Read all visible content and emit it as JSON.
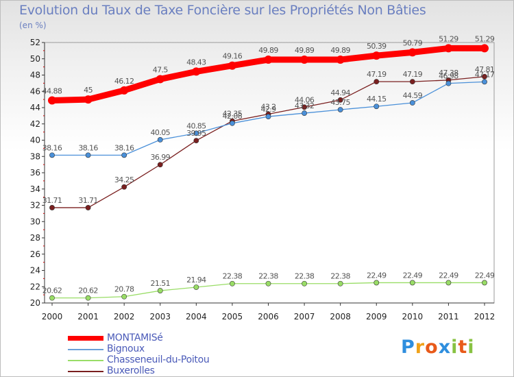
{
  "chart_data": {
    "type": "line",
    "title": "Evolution du Taux de Taxe Foncière sur les Propriétés Non Bâties",
    "unit_label": "(en %)",
    "x": [
      "2000",
      "2001",
      "2002",
      "2003",
      "2004",
      "2005",
      "2006",
      "2007",
      "2008",
      "2009",
      "2010",
      "2011",
      "2012"
    ],
    "ylim": [
      20,
      52
    ],
    "y_ticks": [
      20,
      22,
      24,
      26,
      28,
      30,
      32,
      34,
      36,
      38,
      40,
      42,
      44,
      46,
      48,
      50,
      52
    ],
    "grid": false,
    "legend_position": "bottom-left",
    "series": [
      {
        "name": "MONTAMISé",
        "color": "#ff0000",
        "values": [
          44.88,
          45,
          46.12,
          47.5,
          48.43,
          49.16,
          49.89,
          49.89,
          49.89,
          50.39,
          50.79,
          51.29,
          51.29
        ],
        "labels": [
          "44.88",
          "45",
          "46.12",
          "47.5",
          "48.43",
          "49.16",
          "49.89",
          "49.89",
          "49.89",
          "50.39",
          "50.79",
          "51.29",
          "51.29"
        ]
      },
      {
        "name": "Bignoux",
        "color": "#4a90d9",
        "values": [
          38.16,
          38.16,
          38.16,
          40.05,
          40.85,
          42.08,
          42.9,
          43.32,
          43.75,
          44.15,
          44.59,
          46.98,
          47.17
        ],
        "labels": [
          "38.16",
          "38.16",
          "38.16",
          "40.05",
          "40.85",
          "42.08",
          "42.9",
          "43.32",
          "43.75",
          "44.15",
          "44.59",
          "46.98",
          "47.17"
        ]
      },
      {
        "name": "Chasseneuil-du-Poitou",
        "color": "#99dd66",
        "values": [
          20.62,
          20.62,
          20.78,
          21.51,
          21.94,
          22.38,
          22.38,
          22.38,
          22.38,
          22.49,
          22.49,
          22.49,
          22.49
        ],
        "labels": [
          "20.62",
          "20.62",
          "20.78",
          "21.51",
          "21.94",
          "22.38",
          "22.38",
          "22.38",
          "22.38",
          "22.49",
          "22.49",
          "22.49",
          "22.49"
        ]
      },
      {
        "name": "Buxerolles",
        "color": "#7a1f1f",
        "values": [
          31.71,
          31.71,
          34.25,
          36.99,
          39.95,
          42.35,
          43.2,
          44.06,
          44.94,
          47.19,
          47.19,
          47.38,
          47.81
        ],
        "labels": [
          "31.71",
          "31.71",
          "34.25",
          "36.99",
          "39.95",
          "42.35",
          "43.2",
          "44.06",
          "44.94",
          "47.19",
          "47.19",
          "47.38",
          "47.81"
        ]
      }
    ]
  },
  "legend": {
    "items": [
      {
        "label": "MONTAMISé",
        "color": "#ff0000"
      },
      {
        "label": "Bignoux",
        "color": "#6aa0d8"
      },
      {
        "label": "Chasseneuil-du-Poitou",
        "color": "#99dd66"
      },
      {
        "label": "Buxerolles",
        "color": "#7a1f1f"
      }
    ]
  },
  "logo": {
    "letters": [
      "P",
      "r",
      "o",
      "x",
      "i",
      "t",
      "i"
    ],
    "colors": [
      "#2e8ede",
      "#f0a21a",
      "#e85a1a",
      "#2e8ede",
      "#88c242",
      "#e85a1a",
      "#88c242"
    ]
  }
}
